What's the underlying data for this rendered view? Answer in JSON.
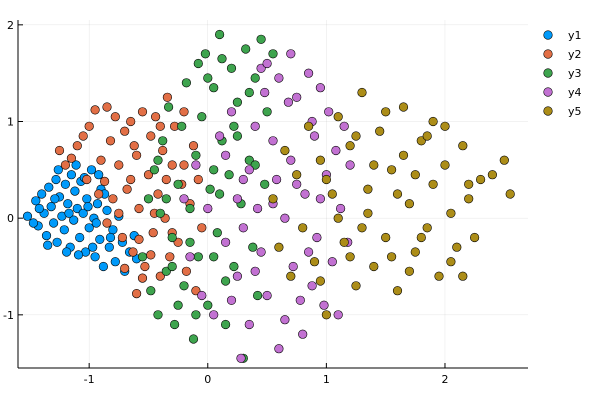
{
  "chart_data": {
    "type": "scatter",
    "title": "",
    "xlabel": "",
    "ylabel": "",
    "xlim": [
      -1.6,
      2.7
    ],
    "ylim": [
      -1.55,
      2.05
    ],
    "xticks": [
      -1,
      0,
      1,
      2
    ],
    "xtick_labels": [
      "-1",
      "0",
      "1",
      "2"
    ],
    "yticks": [
      -1,
      0,
      1,
      2
    ],
    "ytick_labels": [
      "-1",
      "0",
      "1",
      "2"
    ],
    "grid": true,
    "legend": "top-right outside",
    "series": [
      {
        "name": "y1",
        "color": "#009AFA",
        "points": [
          [
            -1.52,
            0.02
          ],
          [
            -1.45,
            0.18
          ],
          [
            -1.43,
            -0.08
          ],
          [
            -1.4,
            0.25
          ],
          [
            -1.38,
            0.05
          ],
          [
            -1.36,
            -0.18
          ],
          [
            -1.34,
            0.32
          ],
          [
            -1.32,
            0.12
          ],
          [
            -1.3,
            -0.05
          ],
          [
            -1.28,
            0.4
          ],
          [
            -1.27,
            -0.25
          ],
          [
            -1.25,
            0.22
          ],
          [
            -1.23,
            0.02
          ],
          [
            -1.21,
            -0.12
          ],
          [
            -1.2,
            0.35
          ],
          [
            -1.18,
            0.15
          ],
          [
            -1.16,
            -0.3
          ],
          [
            -1.15,
            0.45
          ],
          [
            -1.13,
            -0.02
          ],
          [
            -1.12,
            0.28
          ],
          [
            -1.1,
            0.1
          ],
          [
            -1.08,
            -0.2
          ],
          [
            -1.07,
            0.38
          ],
          [
            -1.05,
            0.05
          ],
          [
            -1.03,
            -0.35
          ],
          [
            -1.02,
            0.2
          ],
          [
            -1.0,
            -0.1
          ],
          [
            -0.98,
            0.5
          ],
          [
            -0.96,
            0.0
          ],
          [
            -0.95,
            -0.4
          ],
          [
            -0.93,
            0.15
          ],
          [
            -0.91,
            -0.22
          ],
          [
            -0.9,
            0.3
          ],
          [
            -0.88,
            -0.5
          ],
          [
            -0.85,
            0.08
          ],
          [
            -0.83,
            -0.3
          ],
          [
            -0.8,
            -0.12
          ],
          [
            -0.78,
            -0.45
          ],
          [
            -0.75,
            0.02
          ],
          [
            -0.72,
            -0.25
          ],
          [
            -0.7,
            -0.55
          ],
          [
            -0.66,
            -0.35
          ],
          [
            -1.42,
            0.1
          ],
          [
            -1.35,
            -0.28
          ],
          [
            -1.26,
            0.5
          ],
          [
            -1.19,
            -0.35
          ],
          [
            -1.11,
            0.55
          ],
          [
            -1.04,
            0.42
          ],
          [
            -0.97,
            -0.3
          ],
          [
            -0.92,
            0.45
          ],
          [
            -1.47,
            -0.05
          ],
          [
            -1.29,
            0.2
          ],
          [
            -1.17,
            0.05
          ],
          [
            -1.09,
            -0.38
          ],
          [
            -1.01,
            0.12
          ],
          [
            -0.94,
            -0.05
          ],
          [
            -0.87,
            0.25
          ],
          [
            -0.82,
            -0.2
          ],
          [
            -0.6,
            -0.42
          ],
          [
            -0.62,
            -0.18
          ]
        ]
      },
      {
        "name": "y2",
        "color": "#E26F46",
        "points": [
          [
            -1.25,
            0.7
          ],
          [
            -1.2,
            0.55
          ],
          [
            -1.15,
            0.62
          ],
          [
            -1.1,
            0.75
          ],
          [
            -1.05,
            0.85
          ],
          [
            -1.0,
            0.95
          ],
          [
            -0.95,
            1.12
          ],
          [
            -0.9,
            0.6
          ],
          [
            -0.87,
            0.38
          ],
          [
            -0.85,
            1.15
          ],
          [
            -0.82,
            0.8
          ],
          [
            -0.8,
            0.2
          ],
          [
            -0.78,
            1.05
          ],
          [
            -0.75,
            0.55
          ],
          [
            -0.72,
            -0.2
          ],
          [
            -0.7,
            0.9
          ],
          [
            -0.68,
            0.3
          ],
          [
            -0.65,
            1.0
          ],
          [
            -0.63,
            -0.35
          ],
          [
            -0.6,
            0.65
          ],
          [
            -0.58,
            0.1
          ],
          [
            -0.55,
            1.1
          ],
          [
            -0.53,
            -0.5
          ],
          [
            -0.5,
            0.45
          ],
          [
            -0.48,
            0.85
          ],
          [
            -0.46,
            -0.15
          ],
          [
            -0.44,
            1.05
          ],
          [
            -0.42,
            0.25
          ],
          [
            -0.4,
            -0.6
          ],
          [
            -0.38,
            0.7
          ],
          [
            -0.36,
            0.0
          ],
          [
            -0.34,
            1.25
          ],
          [
            -0.32,
            -0.4
          ],
          [
            -0.3,
            0.55
          ],
          [
            -0.28,
            0.95
          ],
          [
            -0.25,
            -0.25
          ],
          [
            -0.22,
            0.35
          ],
          [
            -0.2,
            1.1
          ],
          [
            -0.18,
            -0.55
          ],
          [
            -0.15,
            0.15
          ],
          [
            -0.12,
            0.75
          ],
          [
            -0.1,
            -0.75
          ],
          [
            -0.08,
            0.4
          ],
          [
            -0.05,
            -0.1
          ],
          [
            -0.6,
            -0.78
          ],
          [
            -0.55,
            -0.62
          ],
          [
            -0.7,
            -0.52
          ],
          [
            -0.75,
            0.05
          ],
          [
            -0.92,
            0.25
          ],
          [
            -1.02,
            0.4
          ],
          [
            -0.65,
            0.4
          ],
          [
            -0.45,
            0.05
          ],
          [
            -0.62,
            0.75
          ],
          [
            -0.4,
            0.95
          ],
          [
            -0.85,
            -0.05
          ],
          [
            -0.48,
            -0.38
          ],
          [
            -0.2,
            0.55
          ],
          [
            -0.3,
            -0.15
          ],
          [
            -0.58,
            -0.22
          ],
          [
            -0.35,
            0.4
          ]
        ]
      },
      {
        "name": "y3",
        "color": "#3EA44E",
        "points": [
          [
            -0.55,
            -0.4
          ],
          [
            -0.5,
            0.2
          ],
          [
            -0.48,
            -0.75
          ],
          [
            -0.45,
            0.5
          ],
          [
            -0.42,
            -1.0
          ],
          [
            -0.4,
            0.05
          ],
          [
            -0.38,
            0.8
          ],
          [
            -0.35,
            -0.55
          ],
          [
            -0.33,
            1.15
          ],
          [
            -0.3,
            -0.2
          ],
          [
            -0.28,
            -1.1
          ],
          [
            -0.25,
            0.35
          ],
          [
            -0.22,
            0.95
          ],
          [
            -0.2,
            -0.7
          ],
          [
            -0.18,
            1.4
          ],
          [
            -0.15,
            0.1
          ],
          [
            -0.12,
            -1.25
          ],
          [
            -0.1,
            0.65
          ],
          [
            -0.08,
            -0.4
          ],
          [
            -0.05,
            1.05
          ],
          [
            -0.02,
            1.7
          ],
          [
            0.0,
            -0.9
          ],
          [
            0.02,
            0.3
          ],
          [
            0.05,
            1.35
          ],
          [
            0.08,
            -0.15
          ],
          [
            0.1,
            1.9
          ],
          [
            0.12,
            0.8
          ],
          [
            0.15,
            -1.1
          ],
          [
            0.18,
            0.45
          ],
          [
            0.2,
            1.55
          ],
          [
            0.22,
            -0.5
          ],
          [
            0.25,
            1.2
          ],
          [
            0.28,
            0.15
          ],
          [
            0.3,
            -1.45
          ],
          [
            0.32,
            1.75
          ],
          [
            0.35,
            0.6
          ],
          [
            0.38,
            -0.3
          ],
          [
            0.4,
            1.45
          ],
          [
            0.42,
            -0.8
          ],
          [
            0.45,
            1.85
          ],
          [
            0.48,
            0.35
          ],
          [
            0.5,
            1.1
          ],
          [
            0.55,
            1.7
          ],
          [
            -0.08,
            1.6
          ],
          [
            0.0,
            1.45
          ],
          [
            0.05,
            0.5
          ],
          [
            -0.35,
            0.2
          ],
          [
            -0.25,
            -0.9
          ],
          [
            0.15,
            -0.65
          ],
          [
            -0.15,
            -0.25
          ],
          [
            0.25,
            0.85
          ],
          [
            0.35,
            1.3
          ],
          [
            -0.42,
            0.6
          ],
          [
            0.12,
            1.65
          ],
          [
            0.22,
            0.95
          ],
          [
            -0.1,
            -1.0
          ],
          [
            0.05,
            -0.4
          ],
          [
            -0.3,
            -0.5
          ],
          [
            0.4,
            0.55
          ],
          [
            0.1,
            0.25
          ]
        ]
      },
      {
        "name": "y4",
        "color": "#C271D2",
        "points": [
          [
            -0.2,
            0.2
          ],
          [
            -0.15,
            -0.4
          ],
          [
            -0.1,
            0.55
          ],
          [
            -0.05,
            -0.8
          ],
          [
            0.0,
            0.1
          ],
          [
            0.05,
            -1.0
          ],
          [
            0.1,
            0.85
          ],
          [
            0.15,
            -0.25
          ],
          [
            0.2,
            1.1
          ],
          [
            0.25,
            -0.6
          ],
          [
            0.28,
            -1.45
          ],
          [
            0.3,
            0.4
          ],
          [
            0.35,
            -1.1
          ],
          [
            0.4,
            0.95
          ],
          [
            0.45,
            -0.35
          ],
          [
            0.48,
            1.3
          ],
          [
            0.5,
            -0.8
          ],
          [
            0.55,
            0.15
          ],
          [
            0.6,
            1.45
          ],
          [
            0.65,
            -1.05
          ],
          [
            0.7,
            0.6
          ],
          [
            0.72,
            -0.5
          ],
          [
            0.75,
            1.25
          ],
          [
            0.8,
            -1.2
          ],
          [
            0.82,
            0.25
          ],
          [
            0.85,
            1.5
          ],
          [
            0.88,
            -0.7
          ],
          [
            0.9,
            0.85
          ],
          [
            0.92,
            -0.2
          ],
          [
            0.95,
            1.35
          ],
          [
            0.98,
            -0.9
          ],
          [
            1.0,
            0.45
          ],
          [
            1.02,
            1.1
          ],
          [
            1.05,
            -0.45
          ],
          [
            1.08,
            0.7
          ],
          [
            1.1,
            -1.0
          ],
          [
            1.12,
            0.1
          ],
          [
            1.15,
            0.95
          ],
          [
            1.18,
            -0.25
          ],
          [
            1.2,
            0.55
          ],
          [
            0.7,
            1.7
          ],
          [
            0.45,
            1.55
          ],
          [
            0.6,
            -1.35
          ],
          [
            0.35,
            0.5
          ],
          [
            0.55,
            0.8
          ],
          [
            0.25,
            0.2
          ],
          [
            0.4,
            -0.55
          ],
          [
            0.65,
            0.0
          ],
          [
            0.75,
            0.35
          ],
          [
            0.85,
            -0.35
          ],
          [
            0.5,
            1.6
          ],
          [
            0.2,
            -0.85
          ],
          [
            0.3,
            -0.1
          ],
          [
            0.95,
            0.2
          ],
          [
            0.15,
            0.65
          ],
          [
            0.68,
            1.2
          ],
          [
            0.42,
            0.1
          ],
          [
            0.78,
            -0.85
          ],
          [
            0.58,
            0.4
          ],
          [
            0.88,
            1.0
          ]
        ]
      },
      {
        "name": "y5",
        "color": "#AC8D18",
        "points": [
          [
            0.55,
            0.2
          ],
          [
            0.6,
            -0.3
          ],
          [
            0.65,
            0.7
          ],
          [
            0.7,
            -0.6
          ],
          [
            0.75,
            0.45
          ],
          [
            0.8,
            -0.1
          ],
          [
            0.85,
            0.95
          ],
          [
            0.9,
            -0.45
          ],
          [
            0.95,
            0.6
          ],
          [
            1.0,
            -1.0
          ],
          [
            1.05,
            0.25
          ],
          [
            1.1,
            1.05
          ],
          [
            1.15,
            -0.25
          ],
          [
            1.2,
            0.75
          ],
          [
            1.25,
            -0.7
          ],
          [
            1.3,
            1.3
          ],
          [
            1.35,
            0.05
          ],
          [
            1.4,
            -0.5
          ],
          [
            1.45,
            0.9
          ],
          [
            1.5,
            -0.2
          ],
          [
            1.55,
            0.5
          ],
          [
            1.6,
            -0.75
          ],
          [
            1.65,
            1.15
          ],
          [
            1.7,
            0.15
          ],
          [
            1.75,
            -0.35
          ],
          [
            1.8,
            0.8
          ],
          [
            1.85,
            -0.1
          ],
          [
            1.9,
            0.35
          ],
          [
            1.95,
            -0.6
          ],
          [
            2.0,
            0.55
          ],
          [
            2.05,
            0.05
          ],
          [
            2.1,
            -0.3
          ],
          [
            2.15,
            0.75
          ],
          [
            2.2,
            0.2
          ],
          [
            2.25,
            -0.2
          ],
          [
            2.3,
            0.4
          ],
          [
            2.4,
            0.45
          ],
          [
            2.5,
            0.6
          ],
          [
            2.55,
            0.25
          ],
          [
            1.85,
            0.85
          ],
          [
            1.4,
            0.55
          ],
          [
            1.2,
            -0.4
          ],
          [
            1.6,
            0.25
          ],
          [
            1.0,
            0.4
          ],
          [
            1.3,
            -0.1
          ],
          [
            1.7,
            -0.55
          ],
          [
            1.9,
            1.0
          ],
          [
            2.05,
            -0.45
          ],
          [
            1.5,
            1.1
          ],
          [
            1.1,
            0.0
          ],
          [
            0.95,
            -0.65
          ],
          [
            1.75,
            0.45
          ],
          [
            2.15,
            -0.6
          ],
          [
            1.25,
            0.85
          ],
          [
            1.55,
            -0.4
          ],
          [
            1.35,
            0.3
          ],
          [
            1.65,
            0.65
          ],
          [
            1.8,
            -0.2
          ],
          [
            2.0,
            0.95
          ],
          [
            2.2,
            0.35
          ]
        ]
      }
    ]
  }
}
